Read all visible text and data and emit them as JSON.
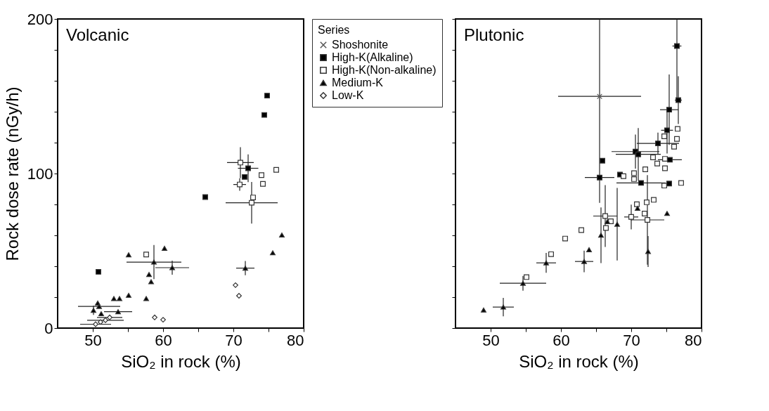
{
  "chart_data": [
    {
      "type": "scatter",
      "title": "Volcanic",
      "xlabel": "SiO₂ in rock (%)",
      "ylabel": "Rock dose rate (nGy/h)",
      "xlim": [
        45,
        80
      ],
      "xticks": [
        50,
        {
          "value": 55,
          "label": null
        },
        60,
        {
          "value": 65,
          "label": null
        },
        70,
        {
          "value": 75,
          "label": null
        },
        80
      ],
      "ylim": [
        0,
        200
      ],
      "yticks": [
        0,
        {
          "value": 20,
          "label": null
        },
        {
          "value": 40,
          "label": null
        },
        {
          "value": 60,
          "label": null
        },
        {
          "value": 80,
          "label": null
        },
        100,
        {
          "value": 120,
          "label": null
        },
        {
          "value": 140,
          "label": null
        },
        {
          "value": 160,
          "label": null
        },
        {
          "value": 180,
          "label": null
        },
        200
      ],
      "grid": false,
      "legend": "right",
      "legend_title": "Series",
      "series": [
        {
          "name": "High-K(Alkaline)",
          "color": "#000000",
          "marker": "square",
          "x": [
            74.8,
            74.4,
            66.0,
            72.1,
            71.6,
            50.8
          ],
          "values": [
            150.4,
            137.9,
            84.8,
            103.4,
            97.8,
            36.4
          ],
          "errors": [
            null,
            null,
            null,
            9,
            null,
            null
          ],
          "xerrors": [
            null,
            null,
            null,
            1.45,
            null,
            null
          ]
        },
        {
          "name": "High-K(Non-alkaline)",
          "color": "#ffffff",
          "marker": "square",
          "x": [
            71.0,
            70.9,
            74.0,
            74.2,
            76.1,
            72.8,
            72.6,
            57.6
          ],
          "values": [
            107.1,
            92.9,
            99.0,
            93.3,
            102.4,
            84.5,
            81.1,
            47.6
          ],
          "errors": [
            10,
            4,
            null,
            null,
            null,
            null,
            13.5,
            null
          ],
          "xerrors": [
            1.9,
            0.9,
            null,
            null,
            null,
            null,
            3.7,
            null
          ]
        },
        {
          "name": "Medium-K",
          "color": "#000000",
          "marker": "triangle",
          "x": [
            55.1,
            60.2,
            58.7,
            61.3,
            58.0,
            58.3,
            57.6,
            55.1,
            53.0,
            53.8,
            53.6,
            50.1,
            50.7,
            50.9,
            51.2,
            71.7,
            75.6,
            76.9
          ],
          "values": [
            47.4,
            51.6,
            42.7,
            39.1,
            34.7,
            30.0,
            19.1,
            21.2,
            19.1,
            19.1,
            10.6,
            11.5,
            16.2,
            14.0,
            9.3,
            38.8,
            48.7,
            60.2
          ],
          "errors": [
            null,
            null,
            11,
            4.5,
            null,
            null,
            null,
            null,
            null,
            null,
            null,
            3,
            null,
            null,
            null,
            4.6,
            null,
            null
          ],
          "xerrors": [
            null,
            null,
            3.9,
            2.4,
            null,
            null,
            null,
            null,
            null,
            null,
            2.0,
            null,
            null,
            3.0,
            null,
            1.3,
            null,
            null
          ]
        },
        {
          "name": "Low-K",
          "color": "#ffffff",
          "marker": "diamond",
          "x": [
            70.3,
            70.8,
            58.8,
            60.0,
            52.4,
            51.8,
            51.1,
            50.4
          ],
          "values": [
            27.8,
            20.9,
            6.9,
            5.4,
            6.9,
            5.1,
            3.9,
            2.5
          ],
          "xerrors": [
            null,
            null,
            null,
            null,
            1.8,
            2.6,
            null,
            2.2
          ]
        }
      ]
    },
    {
      "type": "scatter",
      "title": "Plutonic",
      "xlabel": "SiO₂ in rock (%)",
      "xlim": [
        45,
        80
      ],
      "xticks": [
        50,
        {
          "value": 55,
          "label": null
        },
        60,
        {
          "value": 65,
          "label": null
        },
        70,
        {
          "value": 75,
          "label": null
        },
        80
      ],
      "ylim": [
        0,
        200
      ],
      "yticks": [
        0,
        20,
        40,
        60,
        80,
        100,
        120,
        140,
        160,
        180,
        200
      ],
      "tick_labels": "x",
      "grid": false,
      "series": [
        {
          "name": "Shoshonite",
          "color": "#555555",
          "marker": "cross",
          "x": [
            65.5
          ],
          "values": [
            149.9
          ],
          "errors": [
            [
              81,
              200
            ]
          ],
          "xerrors": [
            5.9
          ]
        },
        {
          "name": "High-K(Alkaline)",
          "color": "#000000",
          "marker": "square",
          "x": [
            76.5,
            76.7,
            75.4,
            75.1,
            73.8,
            70.6,
            71.0,
            75.5,
            65.9,
            68.4,
            65.5,
            71.4,
            75.4
          ],
          "values": [
            182.5,
            147.5,
            141.3,
            128.0,
            119.5,
            114.2,
            112.4,
            108.9,
            108.3,
            99.3,
            97.4,
            93.9,
            93.5
          ],
          "errors": [
            [
              146.5,
              200
            ],
            15.4,
            22.8,
            15,
            7,
            11,
            17,
            null,
            null,
            null,
            null,
            null,
            null
          ],
          "xerrors": [
            0.64,
            0.5,
            1.3,
            0.85,
            3,
            3.4,
            3.2,
            1.7,
            null,
            null,
            2.1,
            3.5,
            null
          ]
        },
        {
          "name": "High-K(Non-alkaline)",
          "color": "#ffffff",
          "marker": "square",
          "x": [
            76.6,
            76.5,
            74.7,
            76.1,
            77.1,
            73.1,
            73.7,
            74.8,
            74.8,
            72.0,
            70.4,
            70.4,
            68.9,
            74.7,
            73.2,
            72.2,
            70.8,
            71.9,
            72.3,
            70.0,
            66.3,
            67.1,
            66.4,
            62.9,
            60.6,
            58.6,
            55.1
          ],
          "values": [
            128.9,
            122.4,
            124.1,
            117.4,
            93.9,
            110.4,
            106.5,
            109.5,
            103.4,
            102.7,
            100.2,
            96.4,
            98.3,
            92.2,
            83.0,
            81.4,
            80.1,
            74.1,
            70.0,
            71.9,
            72.5,
            69.1,
            64.8,
            63.4,
            57.9,
            47.8,
            33.0
          ],
          "errors": [
            null,
            null,
            null,
            null,
            null,
            null,
            null,
            null,
            null,
            null,
            null,
            null,
            null,
            null,
            null,
            null,
            null,
            null,
            29,
            8,
            20,
            null,
            null,
            null,
            null,
            null,
            null
          ],
          "xerrors": [
            null,
            null,
            null,
            null,
            null,
            null,
            null,
            null,
            null,
            null,
            null,
            null,
            null,
            null,
            null,
            null,
            null,
            null,
            2.4,
            1,
            1.7,
            null,
            null,
            null,
            null,
            null,
            null
          ]
        },
        {
          "name": "Medium-K",
          "color": "#000000",
          "marker": "triangle",
          "x": [
            70.9,
            75.1,
            66.6,
            68.0,
            65.7,
            64.0,
            63.3,
            72.4,
            57.9,
            54.6,
            51.8,
            49.0
          ],
          "values": [
            77.5,
            74.2,
            68.9,
            67.2,
            60.1,
            50.7,
            43.1,
            49.6,
            42.2,
            29.0,
            13.6,
            11.7
          ],
          "errors": [
            null,
            null,
            null,
            23.5,
            18,
            null,
            7,
            10,
            6.4,
            4.8,
            6,
            null
          ],
          "xerrors": [
            null,
            null,
            null,
            null,
            null,
            null,
            1.3,
            null,
            1.4,
            3.3,
            1.5,
            null
          ]
        }
      ]
    }
  ]
}
